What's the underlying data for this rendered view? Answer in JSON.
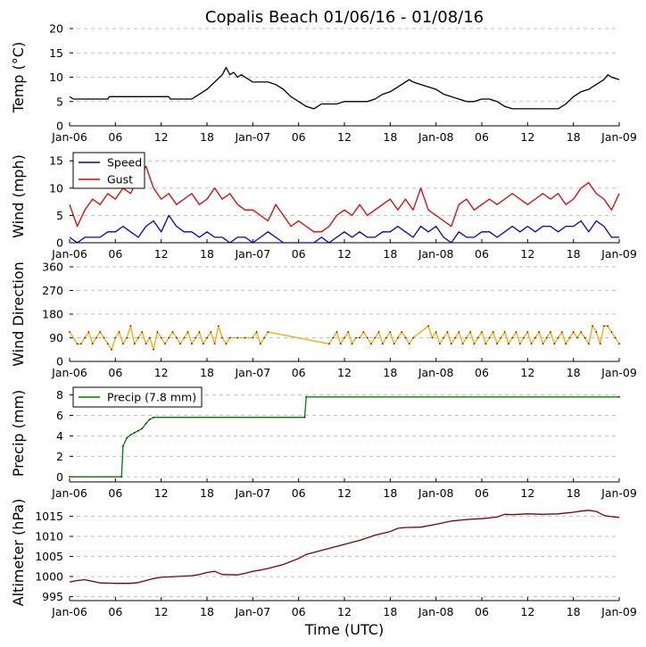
{
  "figure": {
    "title": "Copalis Beach 01/06/16 - 01/08/16",
    "xlabel": "Time (UTC)",
    "x_tick_labels": [
      "Jan-06",
      "06",
      "12",
      "18",
      "Jan-07",
      "06",
      "12",
      "18",
      "Jan-08",
      "06",
      "12",
      "18",
      "Jan-09"
    ],
    "x_tick_hours": [
      0,
      6,
      12,
      18,
      24,
      30,
      36,
      42,
      48,
      54,
      60,
      66,
      72
    ],
    "x_range_hours": [
      0,
      72
    ]
  },
  "chart_data": [
    {
      "type": "line",
      "panel": "temp",
      "ylabel": "Temp (°C)",
      "ylim": [
        0,
        20
      ],
      "yticks": [
        0,
        5,
        10,
        15,
        20
      ],
      "grid": true,
      "series": [
        {
          "name": "Temp",
          "color": "#000000",
          "x_hours": [
            0,
            0.5,
            5,
            5.2,
            13,
            13.2,
            16,
            17,
            18,
            19,
            20,
            20.5,
            21,
            21.5,
            22,
            22.5,
            23,
            24,
            25,
            26,
            27,
            28,
            29,
            30,
            31,
            32,
            33,
            34,
            35,
            36,
            37,
            38,
            39,
            40,
            41,
            42,
            43,
            44,
            44.5,
            45,
            46,
            47,
            48,
            49,
            50,
            51,
            52,
            53,
            54,
            55,
            56,
            57,
            58,
            59,
            60,
            61,
            62,
            63,
            64,
            65,
            66,
            67,
            68,
            69,
            70,
            70.5,
            71,
            72
          ],
          "values": [
            6,
            5.5,
            5.5,
            6,
            6,
            5.5,
            5.5,
            6.5,
            7.5,
            9,
            10.5,
            12,
            10.5,
            11,
            10,
            10.5,
            10,
            9,
            9,
            9,
            8.5,
            7.5,
            6,
            5,
            4,
            3.5,
            4.5,
            4.5,
            4.5,
            5,
            5,
            5,
            5,
            5.5,
            6.5,
            7,
            8,
            9,
            9.5,
            9,
            8.5,
            8,
            7.5,
            6.5,
            6,
            5.5,
            5,
            5,
            5.5,
            5.5,
            5,
            4,
            3.5,
            3.5,
            3.5,
            3.5,
            3.5,
            3.5,
            3.5,
            4.5,
            6,
            7,
            7.5,
            8.5,
            9.5,
            10.5,
            10,
            9.5
          ]
        }
      ]
    },
    {
      "type": "line",
      "panel": "wind",
      "ylabel": "Wind (mph)",
      "ylim": [
        0,
        17
      ],
      "yticks": [
        0,
        5,
        10,
        15
      ],
      "grid": true,
      "legend": {
        "placement": "top-left",
        "entries": [
          "Speed",
          "Gust"
        ]
      },
      "series": [
        {
          "name": "Speed",
          "color": "#0000cc",
          "x_hours": [
            0,
            1,
            2,
            3,
            4,
            5,
            6,
            7,
            8,
            9,
            10,
            11,
            12,
            13,
            14,
            15,
            16,
            17,
            18,
            19,
            20,
            21,
            22,
            23,
            24,
            25,
            26,
            27,
            28,
            29,
            30,
            31,
            32,
            33,
            34,
            35,
            36,
            37,
            38,
            39,
            40,
            41,
            42,
            43,
            44,
            45,
            46,
            47,
            48,
            49,
            50,
            51,
            52,
            53,
            54,
            55,
            56,
            57,
            58,
            59,
            60,
            61,
            62,
            63,
            64,
            65,
            66,
            67,
            68,
            69,
            70,
            71,
            72
          ],
          "values": [
            1,
            0,
            1,
            1,
            1,
            2,
            2,
            3,
            2,
            1,
            3,
            4,
            2,
            5,
            3,
            2,
            2,
            1,
            2,
            1,
            1,
            0,
            1,
            1,
            0,
            1,
            2,
            1,
            0,
            0,
            0,
            0,
            0,
            1,
            0,
            1,
            2,
            1,
            2,
            1,
            1,
            2,
            2,
            3,
            2,
            1,
            3,
            2,
            3,
            1,
            0,
            2,
            1,
            1,
            2,
            2,
            1,
            2,
            3,
            2,
            3,
            2,
            3,
            3,
            2,
            3,
            3,
            4,
            2,
            4,
            3,
            1,
            1
          ]
        },
        {
          "name": "Gust",
          "color": "#dd0000",
          "x_hours": [
            0,
            1,
            2,
            3,
            4,
            5,
            6,
            7,
            8,
            9,
            10,
            11,
            12,
            13,
            14,
            15,
            16,
            17,
            18,
            19,
            20,
            21,
            22,
            23,
            24,
            25,
            26,
            27,
            28,
            29,
            30,
            31,
            32,
            33,
            34,
            35,
            36,
            37,
            38,
            39,
            40,
            41,
            42,
            43,
            44,
            45,
            46,
            47,
            48,
            49,
            50,
            51,
            52,
            53,
            54,
            55,
            56,
            57,
            58,
            59,
            60,
            61,
            62,
            63,
            64,
            65,
            66,
            67,
            68,
            69,
            70,
            71,
            72
          ],
          "values": [
            7,
            3,
            6,
            8,
            7,
            9,
            8,
            10,
            9,
            12,
            14,
            10,
            8,
            9,
            7,
            8,
            9,
            7,
            8,
            10,
            8,
            9,
            7,
            6,
            6,
            5,
            4,
            7,
            5,
            3,
            4,
            3,
            2,
            2,
            3,
            5,
            6,
            5,
            7,
            5,
            6,
            7,
            8,
            6,
            8,
            6,
            10,
            6,
            5,
            4,
            3,
            7,
            8,
            6,
            7,
            8,
            7,
            8,
            9,
            8,
            7,
            8,
            9,
            8,
            9,
            7,
            8,
            10,
            11,
            9,
            8,
            6,
            9
          ]
        }
      ]
    },
    {
      "type": "line",
      "panel": "wind_direction",
      "ylabel": "Wind Direction",
      "ylim": [
        0,
        360
      ],
      "yticks": [
        0,
        90,
        180,
        270,
        360
      ],
      "grid": true,
      "series": [
        {
          "name": "Direction",
          "color": "#ffa500",
          "x_hours": [
            0,
            1,
            1.5,
            2,
            2.5,
            3,
            3.5,
            4,
            4.5,
            5,
            5.5,
            6,
            6.5,
            7,
            7.5,
            8,
            8.5,
            9,
            9.5,
            10,
            10.5,
            11,
            11.5,
            12,
            12.5,
            13,
            13.5,
            14,
            14.5,
            15,
            15.5,
            16,
            16.5,
            17,
            17.5,
            18,
            18.5,
            19,
            19.5,
            20,
            20.5,
            21,
            22,
            23,
            24,
            24.5,
            25,
            25.5,
            26,
            34,
            34.5,
            35,
            35.5,
            36,
            36.5,
            37,
            37.5,
            38,
            38.5,
            39,
            39.5,
            40,
            40.5,
            41,
            41.5,
            42,
            42.5,
            43,
            43.5,
            44,
            44.5,
            45,
            47,
            47.5,
            48,
            48.5,
            49,
            49.5,
            50,
            50.5,
            51,
            51.5,
            52,
            52.5,
            53,
            53.5,
            54,
            54.5,
            55,
            55.5,
            56,
            56.5,
            57,
            57.5,
            58,
            58.5,
            59,
            59.5,
            60,
            60.5,
            61,
            61.5,
            62,
            62.5,
            63,
            63.5,
            64,
            64.5,
            65,
            65.5,
            66,
            66.5,
            67,
            67.5,
            68,
            68.5,
            69,
            69.5,
            70,
            70.5,
            71,
            71.5,
            72
          ],
          "values": [
            112,
            67,
            67,
            90,
            112,
            67,
            90,
            112,
            90,
            67,
            45,
            90,
            112,
            67,
            90,
            135,
            67,
            90,
            112,
            67,
            90,
            45,
            112,
            90,
            67,
            90,
            112,
            90,
            67,
            90,
            112,
            67,
            90,
            112,
            67,
            90,
            112,
            67,
            135,
            90,
            67,
            90,
            90,
            90,
            90,
            112,
            67,
            90,
            112,
            67,
            90,
            112,
            67,
            90,
            112,
            67,
            90,
            90,
            112,
            90,
            67,
            90,
            112,
            67,
            90,
            112,
            67,
            90,
            112,
            90,
            67,
            90,
            135,
            90,
            112,
            67,
            90,
            112,
            67,
            90,
            112,
            67,
            90,
            112,
            67,
            90,
            112,
            67,
            90,
            112,
            67,
            90,
            112,
            67,
            90,
            112,
            67,
            90,
            112,
            67,
            90,
            112,
            67,
            90,
            112,
            67,
            90,
            112,
            67,
            90,
            112,
            90,
            112,
            90,
            67,
            135,
            112,
            67,
            135,
            135,
            112,
            90,
            67
          ]
        }
      ]
    },
    {
      "type": "line",
      "panel": "precip",
      "ylabel": "Precip (mm)",
      "ylim": [
        -0.5,
        9
      ],
      "yticks": [
        0,
        2,
        4,
        6,
        8
      ],
      "grid": true,
      "legend": {
        "placement": "top-left",
        "entries": [
          "Precip (7.8 mm)"
        ]
      },
      "series": [
        {
          "name": "Precip (7.8 mm)",
          "color": "#008000",
          "x_hours": [
            0,
            6.8,
            7,
            7.5,
            8,
            8.5,
            9,
            9.5,
            10,
            10.5,
            11,
            30.8,
            31,
            72
          ],
          "values": [
            0,
            0,
            3,
            3.8,
            4.1,
            4.3,
            4.5,
            4.7,
            5.2,
            5.6,
            5.8,
            5.8,
            7.8,
            7.8
          ]
        }
      ]
    },
    {
      "type": "line",
      "panel": "altimeter",
      "ylabel": "Altimeter (hPa)",
      "ylim": [
        994,
        1018
      ],
      "yticks": [
        995,
        1000,
        1005,
        1010,
        1015
      ],
      "grid": true,
      "series": [
        {
          "name": "Altimeter",
          "color": "#800000",
          "x_hours": [
            0,
            1,
            2,
            3,
            4,
            6,
            8,
            9,
            10,
            11,
            12,
            14,
            16,
            17,
            18,
            19,
            20,
            22,
            23,
            24,
            25,
            26,
            28,
            30,
            31,
            32,
            33,
            34,
            35,
            36,
            38,
            40,
            42,
            43,
            44,
            46,
            48,
            50,
            52,
            54,
            56,
            57,
            58,
            60,
            62,
            64,
            66,
            67,
            68,
            69,
            70,
            71,
            72
          ],
          "values": [
            998.6,
            999,
            999.2,
            998.8,
            998.4,
            998.3,
            998.3,
            998.5,
            999,
            999.5,
            999.8,
            1000,
            1000.2,
            1000.5,
            1001,
            1001.3,
            1000.5,
            1000.4,
            1000.8,
            1001.3,
            1001.6,
            1002,
            1003,
            1004.5,
            1005.5,
            1006,
            1006.5,
            1007,
            1007.5,
            1008,
            1009,
            1010.3,
            1011.2,
            1012,
            1012.2,
            1012.3,
            1013,
            1013.8,
            1014.2,
            1014.4,
            1014.8,
            1015.5,
            1015.4,
            1015.6,
            1015.5,
            1015.6,
            1016,
            1016.3,
            1016.5,
            1016.2,
            1015.2,
            1014.9,
            1014.7
          ]
        }
      ]
    }
  ]
}
